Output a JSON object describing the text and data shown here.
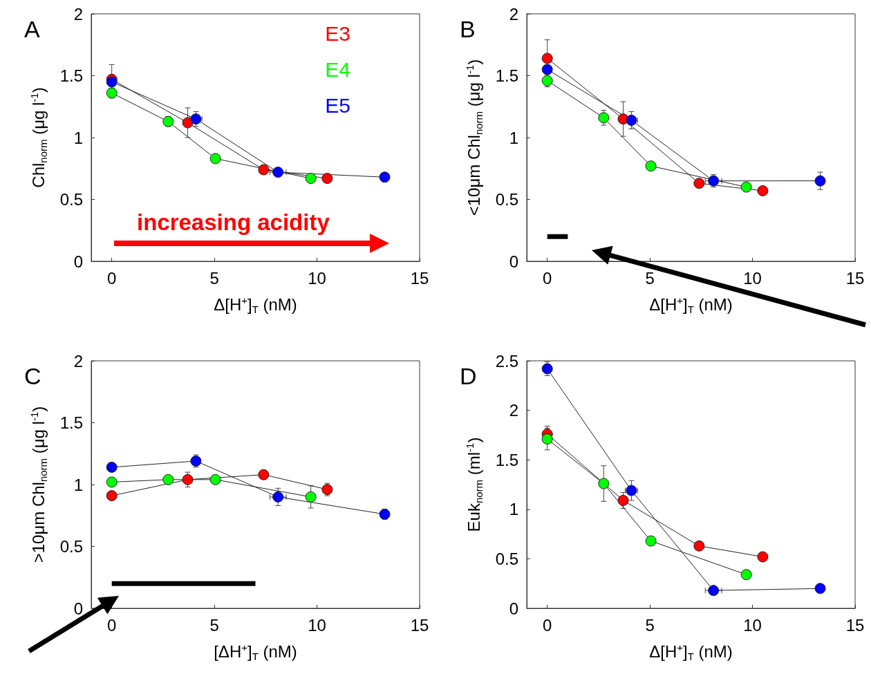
{
  "chart_data": [
    {
      "type": "line",
      "title": "A",
      "xlabel": "Δ[H$^{+}$]$_{T}$ (nM)",
      "ylabel": "Chl$_{norm}$ (μg l$^{-1}$)",
      "xlim": [
        -1,
        15
      ],
      "xticks": [
        0,
        5,
        10,
        15
      ],
      "ylim": [
        0,
        2
      ],
      "yticks": [
        0,
        0.5,
        1,
        1.5,
        2
      ],
      "grid": false,
      "legend": "top right",
      "marker": "circle",
      "annotations": [
        "increasing acidity"
      ],
      "series": [
        {
          "name": "E3",
          "color": "#ff0000",
          "x": [
            0,
            3.7,
            7.4,
            10.5
          ],
          "values": [
            1.47,
            1.12,
            0.74,
            0.67
          ],
          "errors": [
            0.12,
            0.12,
            null,
            null
          ]
        },
        {
          "name": "E4",
          "color": "#00ff00",
          "x": [
            0,
            2.75,
            5.05,
            9.7
          ],
          "values": [
            1.36,
            1.13,
            0.83,
            0.67
          ],
          "errors": [
            0.04,
            0.04,
            null,
            null
          ]
        },
        {
          "name": "E5",
          "color": "#0000ff",
          "x": [
            0,
            4.1,
            8.1,
            13.3
          ],
          "values": [
            1.45,
            1.15,
            0.72,
            0.68
          ],
          "errors": [
            null,
            0.06,
            null,
            null
          ],
          "xerrors": [
            null,
            0.3,
            0.4,
            null
          ]
        }
      ]
    },
    {
      "type": "line",
      "title": "B",
      "xlabel": "Δ[H$^{+}$]$_{T}$ (nM)",
      "ylabel": "<10μm Chl$_{norm}$ (μg l$^{-1}$)",
      "xlim": [
        -1,
        15
      ],
      "xticks": [
        0,
        5,
        10,
        15
      ],
      "ylim": [
        0,
        2
      ],
      "yticks": [
        0,
        0.5,
        1,
        1.5,
        2
      ],
      "grid": false,
      "marker": "circle",
      "series": [
        {
          "color": "#ff0000",
          "x": [
            0,
            3.7,
            7.4,
            10.5
          ],
          "values": [
            1.64,
            1.15,
            0.63,
            0.57
          ],
          "errors": [
            0.15,
            0.14,
            null,
            null
          ]
        },
        {
          "color": "#00ff00",
          "x": [
            0,
            2.75,
            5.05,
            9.7
          ],
          "values": [
            1.46,
            1.16,
            0.77,
            0.6
          ],
          "errors": [
            0.05,
            0.06,
            null,
            null
          ]
        },
        {
          "color": "#0000ff",
          "x": [
            0,
            4.1,
            8.1,
            13.3
          ],
          "values": [
            1.55,
            1.14,
            0.65,
            0.65
          ],
          "errors": [
            null,
            0.07,
            0.05,
            0.07
          ],
          "xerrors": [
            null,
            0.3,
            0.4,
            null
          ]
        },
        {
          "color": "#000000",
          "marker": "none",
          "x": [
            0,
            1
          ],
          "values": [
            0.2,
            0.2
          ]
        }
      ]
    },
    {
      "type": "line",
      "title": "C",
      "xlabel": "[ΔH$^{+}$]$_{T}$ (nM)",
      "ylabel": ">10μm Chl$_{norm}$ (μg l$^{-1}$)",
      "xlim": [
        -1,
        15
      ],
      "xticks": [
        0,
        5,
        10,
        15
      ],
      "ylim": [
        0,
        2
      ],
      "yticks": [
        0,
        0.5,
        1,
        1.5,
        2
      ],
      "grid": false,
      "marker": "circle",
      "series": [
        {
          "color": "#ff0000",
          "x": [
            0,
            3.7,
            7.4,
            10.5
          ],
          "values": [
            0.91,
            1.04,
            1.08,
            0.96
          ],
          "errors": [
            null,
            0.06,
            null,
            0.05
          ]
        },
        {
          "color": "#00ff00",
          "x": [
            0,
            2.75,
            5.05,
            9.7
          ],
          "values": [
            1.02,
            1.04,
            1.04,
            0.9
          ],
          "errors": [
            null,
            null,
            null,
            0.09
          ]
        },
        {
          "color": "#0000ff",
          "x": [
            0,
            4.1,
            8.1,
            13.3
          ],
          "values": [
            1.14,
            1.19,
            0.9,
            0.76
          ],
          "errors": [
            null,
            0.05,
            0.07,
            0.04
          ],
          "xerrors": [
            null,
            null,
            0.4,
            null
          ]
        },
        {
          "color": "#000000",
          "marker": "none",
          "x": [
            0,
            7
          ],
          "values": [
            0.2,
            0.2
          ]
        }
      ]
    },
    {
      "type": "line",
      "title": "D",
      "xlabel": "Δ[H$^{+}$]$_{T}$ (nM)",
      "ylabel": "Euk$_{norm}$ (ml$^{-1}$)",
      "xlim": [
        -1,
        15
      ],
      "xticks": [
        0,
        5,
        10,
        15
      ],
      "ylim": [
        0,
        2.5
      ],
      "yticks": [
        0,
        0.5,
        1,
        1.5,
        2,
        2.5
      ],
      "grid": false,
      "marker": "circle",
      "series": [
        {
          "color": "#ff0000",
          "x": [
            0,
            3.7,
            7.4,
            10.5
          ],
          "values": [
            1.76,
            1.09,
            0.63,
            0.52
          ],
          "errors": [
            0.08,
            0.08,
            null,
            null
          ]
        },
        {
          "color": "#00ff00",
          "x": [
            0,
            2.75,
            5.05,
            9.7
          ],
          "values": [
            1.71,
            1.26,
            0.68,
            0.34
          ],
          "errors": [
            0.11,
            0.18,
            null,
            null
          ]
        },
        {
          "color": "#0000ff",
          "x": [
            0,
            4.1,
            8.1,
            13.3
          ],
          "values": [
            2.42,
            1.19,
            0.18,
            0.2
          ],
          "errors": [
            0.07,
            0.1,
            null,
            null
          ],
          "xerrors": [
            null,
            0.3,
            0.4,
            null
          ]
        }
      ]
    }
  ]
}
